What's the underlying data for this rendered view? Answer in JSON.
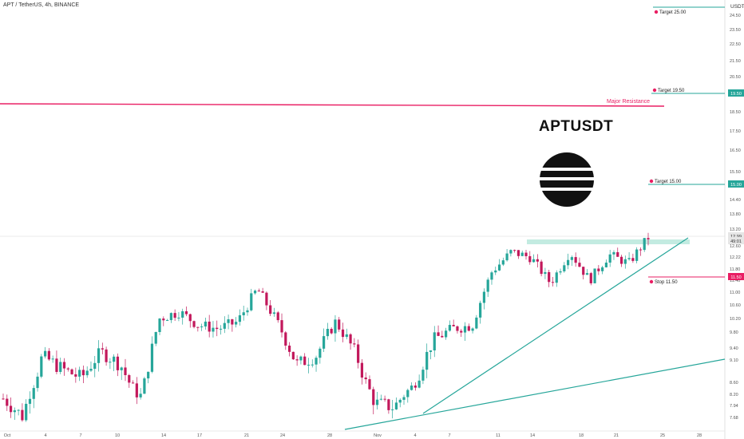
{
  "header": {
    "symbol_text": "APT / TetherUS, 4h, BINANCE"
  },
  "brand": {
    "title": "APTUSDT"
  },
  "colors": {
    "up": "#26a69a",
    "down": "#c2185b",
    "target_line": "#26a69a",
    "resistance": "#e91e63",
    "stop": "#e91e63",
    "zone": "#bde9de"
  },
  "axis": {
    "currency": "USDT",
    "y_ticks": [
      "24.50",
      "23.50",
      "22.50",
      "21.50",
      "20.50",
      "18.50",
      "17.50",
      "16.50",
      "15.50",
      "14.40",
      "13.80",
      "13.20",
      "12.60",
      "12.22",
      "11.80",
      "11.40",
      "11.00",
      "10.60",
      "10.20",
      "9.80",
      "9.40",
      "9.10",
      "8.60",
      "8.20",
      "7.94",
      "7.68"
    ],
    "price_tags": [
      {
        "label": "15.00",
        "color": "#26a69a"
      },
      {
        "label": "19.50",
        "color": "#26a69a"
      },
      {
        "label": "11.50",
        "color": "#e91e63"
      },
      {
        "label": "12.99",
        "color": "#e6e6e6"
      },
      {
        "label": "49:01",
        "color": "#e6e6e6"
      }
    ],
    "x_ticks": [
      "Oct",
      "4",
      "7",
      "10",
      "14",
      "17",
      "21",
      "24",
      "28",
      "Nov",
      "4",
      "7",
      "11",
      "14",
      "18",
      "21",
      "25",
      "28"
    ]
  },
  "annotations": {
    "target_25": "Target 25.00",
    "target_19": "Target 19.50",
    "target_15": "Target 15.00",
    "stop": "Stop 11.50",
    "resistance": "Major Resistance"
  },
  "chart_data": {
    "type": "candlestick",
    "title": "APT / TetherUS, 4h, BINANCE",
    "xlabel": "",
    "ylabel": "USDT",
    "ylim": [
      7.4,
      25.0
    ],
    "x_range": [
      "Oct 1",
      "Nov 28"
    ],
    "grid": false,
    "levels": [
      {
        "name": "Target 25.00",
        "value": 25.0
      },
      {
        "name": "Target 19.50",
        "value": 19.5
      },
      {
        "name": "Major Resistance",
        "value": 18.75
      },
      {
        "name": "Target 15.00",
        "value": 15.0
      },
      {
        "name": "Stop 11.50",
        "value": 11.5
      }
    ],
    "trendlines": [
      {
        "from": [
          "Nov 4",
          7.8
        ],
        "to": [
          "Nov 27",
          12.45
        ]
      },
      {
        "from": [
          "Oct 28",
          7.4
        ],
        "to": [
          "Nov 30",
          9.1
        ]
      }
    ],
    "close_path": [
      8.1,
      7.7,
      9.2,
      8.9,
      8.7,
      9.3,
      9.0,
      8.1,
      10.2,
      10.4,
      10.0,
      9.9,
      10.1,
      11.1,
      10.1,
      9.0,
      9.2,
      10.1,
      9.3,
      8.0,
      7.9,
      8.5,
      9.6,
      9.9,
      10.0,
      11.7,
      12.4,
      12.2,
      11.3,
      12.4,
      11.4,
      12.3,
      12.0,
      12.9
    ]
  }
}
